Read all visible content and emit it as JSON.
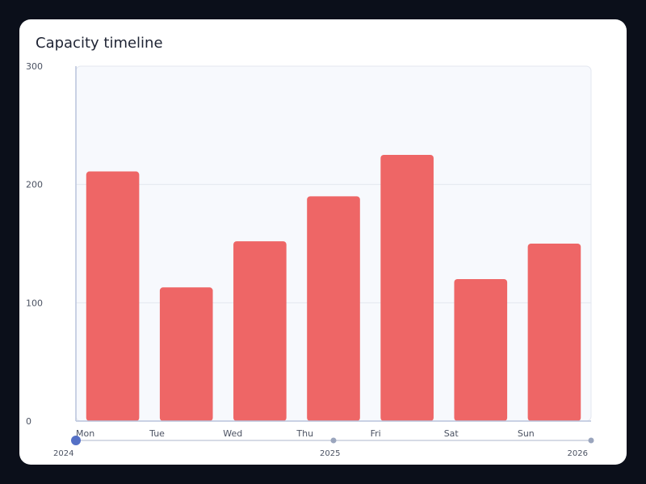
{
  "chart_data": {
    "type": "bar",
    "title": "Capacity timeline",
    "categories": [
      "Mon",
      "Tue",
      "Wed",
      "Thu",
      "Fri",
      "Sat",
      "Sun"
    ],
    "series": [
      {
        "values": [
          211,
          113,
          152,
          190,
          225,
          120,
          150
        ]
      }
    ],
    "ylim": [
      0,
      300
    ],
    "yticks": [
      0,
      100,
      200,
      300
    ],
    "grid": true,
    "bar_color": "#ee6666"
  },
  "timeline_slider": {
    "labels": [
      "2024",
      "2025",
      "2026"
    ],
    "selected": "2024",
    "accent_color": "#5470c6"
  }
}
